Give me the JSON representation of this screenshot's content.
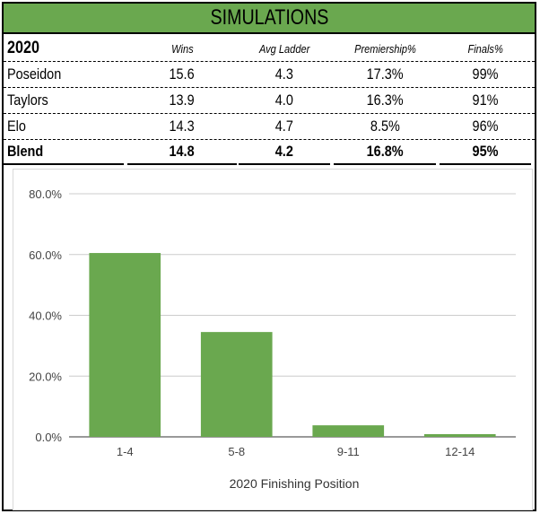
{
  "header": {
    "title": "SIMULATIONS"
  },
  "table": {
    "columns": [
      "2020",
      "Wins",
      "Avg Ladder",
      "Premiership%",
      "Finals%"
    ],
    "rows": [
      {
        "name": "Poseidon",
        "wins": "15.6",
        "avg_ladder": "4.3",
        "premiership": "17.3%",
        "finals": "99%"
      },
      {
        "name": "Taylors",
        "wins": "13.9",
        "avg_ladder": "4.0",
        "premiership": "16.3%",
        "finals": "91%"
      },
      {
        "name": "Elo",
        "wins": "14.3",
        "avg_ladder": "4.7",
        "premiership": "8.5%",
        "finals": "96%"
      }
    ],
    "blend": {
      "name": "Blend",
      "wins": "14.8",
      "avg_ladder": "4.2",
      "premiership": "16.8%",
      "finals": "95%"
    }
  },
  "colors": {
    "accent": "#6aa84f",
    "bar": "#6aa84f",
    "grid": "#cccccc"
  },
  "chart_data": {
    "type": "bar",
    "title": "",
    "categories": [
      "1-4",
      "5-8",
      "9-11",
      "12-14"
    ],
    "values": [
      60.5,
      34.5,
      3.8,
      0.9
    ],
    "xlabel": "2020 Finishing Position",
    "ylabel": "",
    "ylim": [
      0,
      80
    ],
    "yticks": [
      "0.0%",
      "20.0%",
      "40.0%",
      "60.0%",
      "80.0%"
    ],
    "ytick_values": [
      0,
      20,
      40,
      60,
      80
    ],
    "grid": true,
    "legend": "none"
  }
}
